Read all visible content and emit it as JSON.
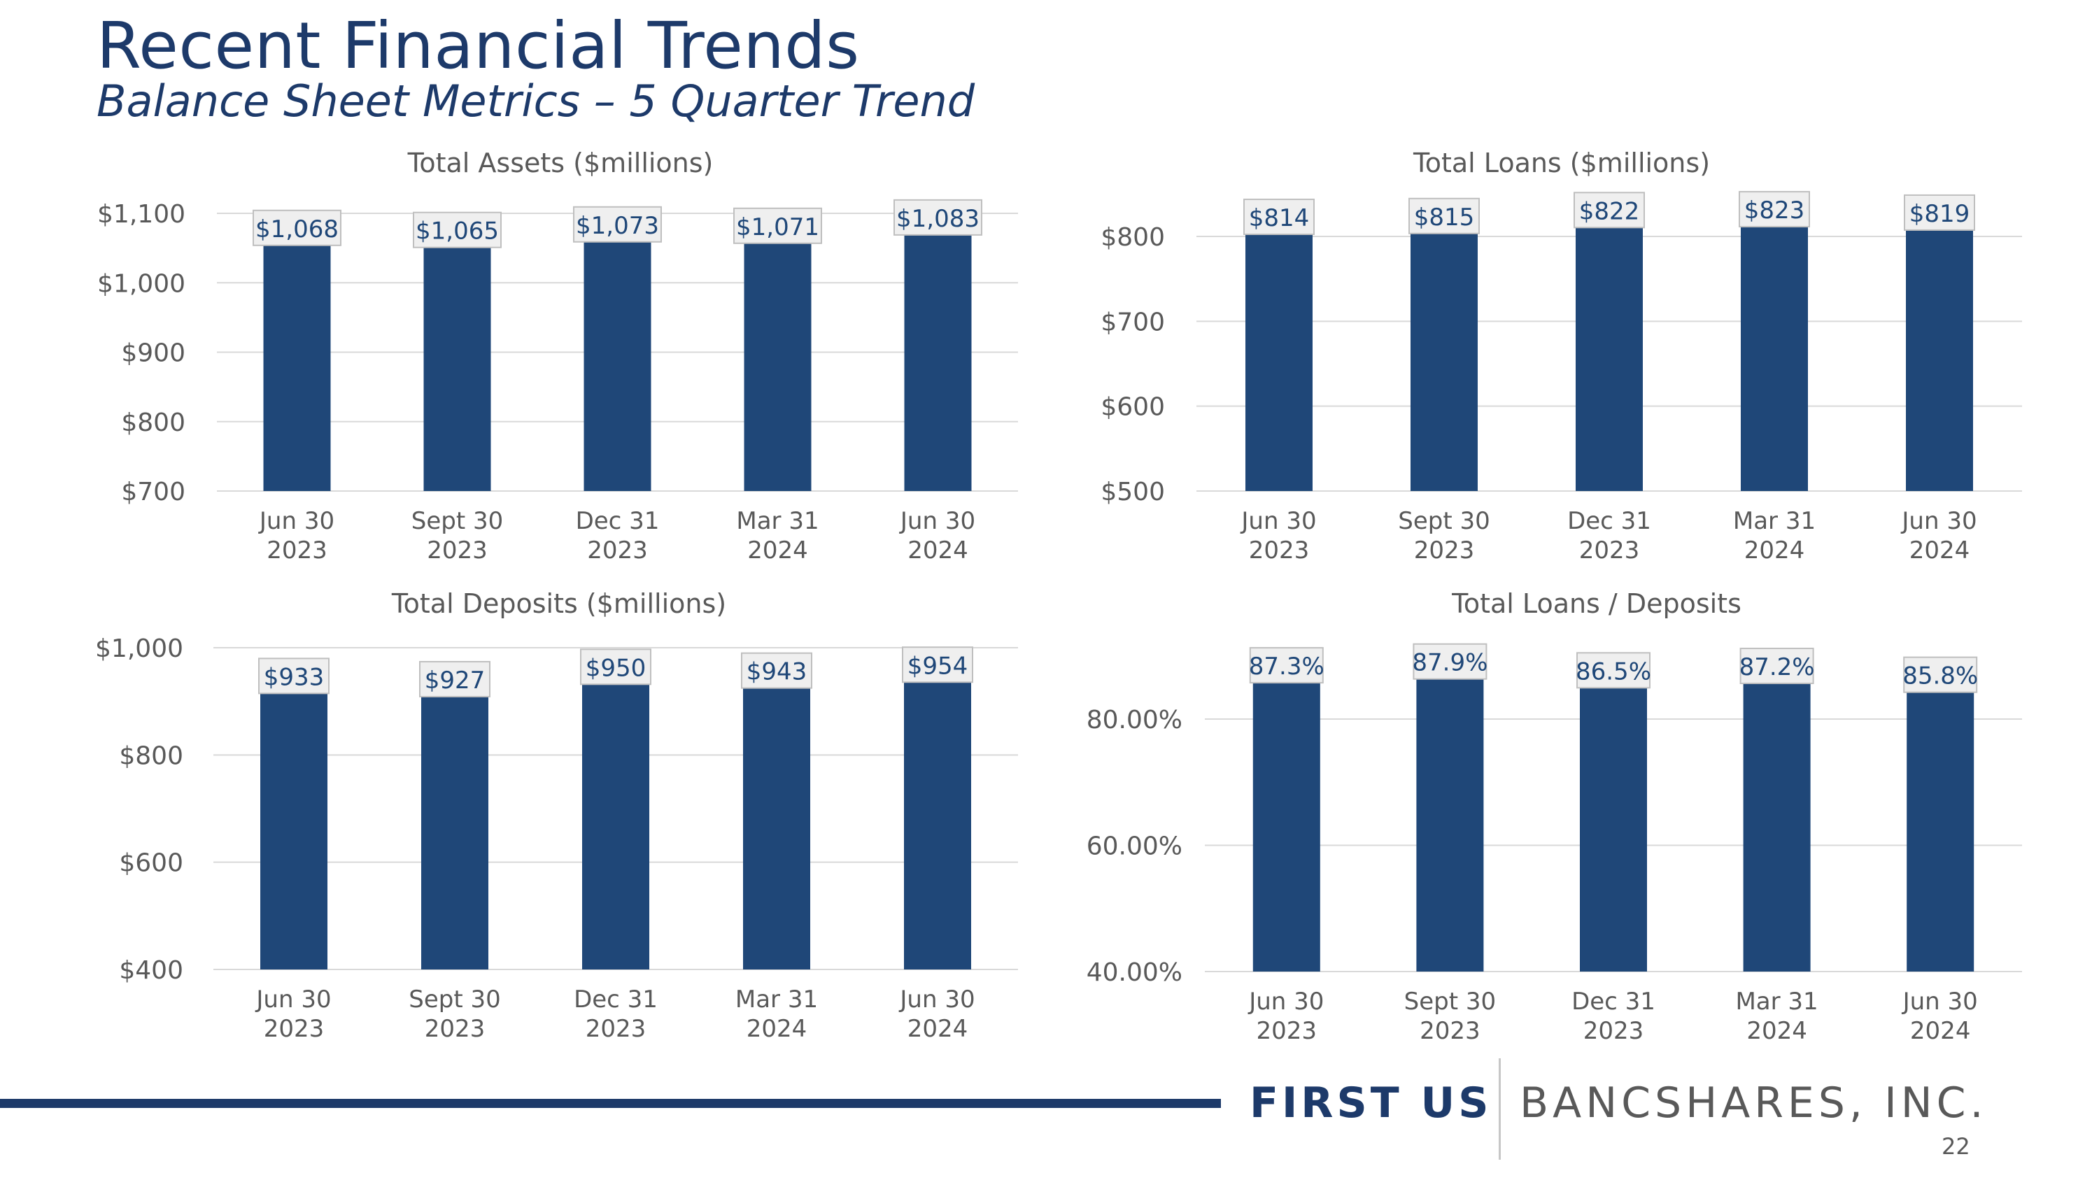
{
  "page": {
    "title": "Recent Financial Trends",
    "subtitle": "Balance Sheet Metrics – 5 Quarter Trend",
    "brand_bold": "FIRST US",
    "brand_light": "BANCSHARES, INC.",
    "page_number": "22"
  },
  "colors": {
    "bar": "#1f4778",
    "title": "#1d3a6a",
    "axis_text": "#595959",
    "gridline": "#d9d9d9",
    "label_box_fill": "#efefef",
    "label_box_stroke": "#bfbfbf",
    "label_text": "#1f4778"
  },
  "chart_data": [
    {
      "type": "bar",
      "title": "Total Assets ($millions)",
      "categories": [
        "Jun 30\n2023",
        "Sept 30\n2023",
        "Dec 31\n2023",
        "Mar 31\n2024",
        "Jun 30\n2024"
      ],
      "values": [
        1068,
        1065,
        1073,
        1071,
        1083
      ],
      "data_labels": [
        "$1,068",
        "$1,065",
        "$1,073",
        "$1,071",
        "$1,083"
      ],
      "ylim": [
        700,
        1100
      ],
      "yticks": [
        700,
        800,
        900,
        1000,
        1100
      ],
      "ytick_labels": [
        "$700",
        "$800",
        "$900",
        "$1,000",
        "$1,100"
      ],
      "grid": true
    },
    {
      "type": "bar",
      "title": "Total Loans ($millions)",
      "categories": [
        "Jun 30\n2023",
        "Sept 30\n2023",
        "Dec 31\n2023",
        "Mar 31\n2024",
        "Jun 30\n2024"
      ],
      "values": [
        814,
        815,
        822,
        823,
        819
      ],
      "data_labels": [
        "$814",
        "$815",
        "$822",
        "$823",
        "$819"
      ],
      "ylim": [
        500,
        800
      ],
      "yticks": [
        500,
        600,
        700,
        800
      ],
      "ytick_labels": [
        "$500",
        "$600",
        "$700",
        "$800"
      ],
      "grid": true
    },
    {
      "type": "bar",
      "title": "Total Deposits ($millions)",
      "categories": [
        "Jun 30\n2023",
        "Sept 30\n2023",
        "Dec 31\n2023",
        "Mar 31\n2024",
        "Jun 30\n2024"
      ],
      "values": [
        933,
        927,
        950,
        943,
        954
      ],
      "data_labels": [
        "$933",
        "$927",
        "$950",
        "$943",
        "$954"
      ],
      "ylim": [
        400,
        1000
      ],
      "yticks": [
        400,
        600,
        800,
        1000
      ],
      "ytick_labels": [
        "$400",
        "$600",
        "$800",
        "$1,000"
      ],
      "grid": true
    },
    {
      "type": "bar",
      "title": "Total Loans / Deposits",
      "categories": [
        "Jun 30\n2023",
        "Sept 30\n2023",
        "Dec 31\n2023",
        "Mar 31\n2024",
        "Jun 30\n2024"
      ],
      "values": [
        87.3,
        87.9,
        86.5,
        87.2,
        85.8
      ],
      "data_labels": [
        "87.3%",
        "87.9%",
        "86.5%",
        "87.2%",
        "85.8%"
      ],
      "ylim": [
        40,
        80
      ],
      "yticks": [
        40,
        60,
        80
      ],
      "ytick_labels": [
        "40.00%",
        "60.00%",
        "80.00%"
      ],
      "grid": true
    }
  ]
}
